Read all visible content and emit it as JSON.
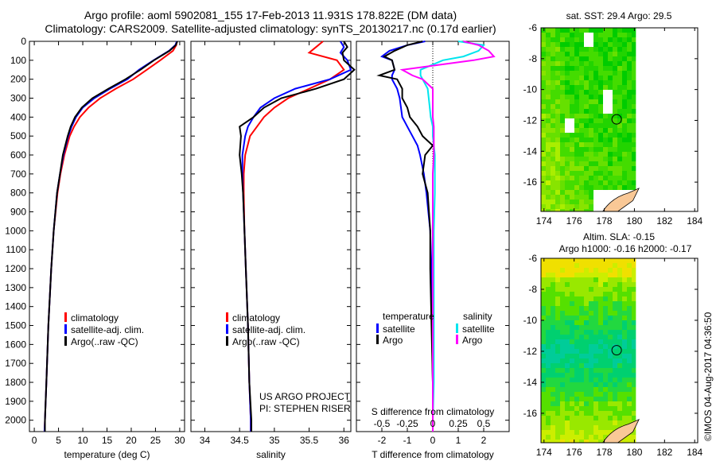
{
  "title_line1": "Argo profile: aoml 5902081_155 17-Feb-2013 11.931S 178.822E (DM data)",
  "title_line2": "Climatology: CARS2009. Satellite-adjusted climatology: synTS_20130217.nc (0.17d earlier)",
  "credit": "©IMOS 04-Aug-2017 04:36:50",
  "project_line1": "US ARGO PROJECT",
  "project_line2": "PI: STEPHEN RISER",
  "colors": {
    "climatology": "#ff0000",
    "satellite": "#0000ff",
    "argo": "#000000",
    "sal_satellite": "#00e5ee",
    "sal_argo": "#ff00ff",
    "land": "#f9c896"
  },
  "chart_data": [
    {
      "type": "line",
      "id": "temperature",
      "xlabel": "temperature (deg C)",
      "ylabel": "",
      "xlim": [
        -1,
        31
      ],
      "ylim": [
        2060,
        0
      ],
      "xticks": [
        0,
        5,
        10,
        15,
        20,
        25,
        30
      ],
      "yticks": [
        0,
        100,
        200,
        300,
        400,
        500,
        600,
        700,
        800,
        900,
        1000,
        1100,
        1200,
        1300,
        1400,
        1500,
        1600,
        1700,
        1800,
        1900,
        2000
      ],
      "legend": [
        "climatology",
        "satellite-adj. clim.",
        "Argo(..raw -QC)"
      ],
      "depth": [
        0,
        20,
        50,
        100,
        150,
        200,
        250,
        300,
        350,
        400,
        450,
        500,
        600,
        700,
        800,
        1000,
        1200,
        1500,
        1800,
        2000,
        2060
      ],
      "series": [
        {
          "name": "climatology",
          "color_key": "climatology",
          "values": [
            29.4,
            29.3,
            28.6,
            26.0,
            23.2,
            20.4,
            16.8,
            13.6,
            11.2,
            9.4,
            8.2,
            7.3,
            6.2,
            5.4,
            4.8,
            4.0,
            3.5,
            2.9,
            2.5,
            2.2,
            2.1
          ]
        },
        {
          "name": "satellite-adj. clim.",
          "color_key": "satellite",
          "values": [
            29.4,
            29.1,
            27.8,
            24.6,
            21.6,
            19.2,
            15.6,
            12.4,
            10.0,
            8.6,
            7.7,
            7.0,
            6.0,
            5.3,
            4.7,
            4.0,
            3.5,
            2.9,
            2.5,
            2.2,
            2.1
          ]
        },
        {
          "name": "Argo(..raw -QC)",
          "color_key": "argo",
          "values": [
            29.5,
            29.2,
            27.9,
            24.7,
            21.9,
            18.8,
            15.3,
            12.0,
            9.8,
            8.4,
            7.5,
            6.9,
            5.9,
            5.3,
            4.7,
            4.0,
            3.5,
            2.9,
            2.5,
            2.2,
            2.2
          ]
        }
      ]
    },
    {
      "type": "line",
      "id": "salinity",
      "xlabel": "salinity",
      "xlim": [
        33.8,
        36.1
      ],
      "ylim": [
        2060,
        0
      ],
      "xticks": [
        34,
        34.5,
        35,
        35.5,
        36
      ],
      "legend": [
        "climatology",
        "satellite-adj. clim.",
        "Argo(..raw -QC)"
      ],
      "depth": [
        0,
        30,
        60,
        100,
        150,
        200,
        250,
        300,
        350,
        400,
        450,
        500,
        600,
        700,
        800,
        1000,
        1200,
        1500,
        1800,
        2000,
        2060
      ],
      "series": [
        {
          "name": "climatology",
          "color_key": "climatology",
          "values": [
            35.7,
            35.6,
            35.5,
            35.9,
            36.0,
            35.8,
            35.5,
            35.2,
            35.0,
            34.85,
            34.75,
            34.65,
            34.58,
            34.56,
            34.56,
            34.57,
            34.59,
            34.62,
            34.64,
            34.66,
            34.66
          ]
        },
        {
          "name": "satellite-adj. clim.",
          "color_key": "satellite",
          "values": [
            35.95,
            36.0,
            35.95,
            36.05,
            36.1,
            35.8,
            35.3,
            35.0,
            34.8,
            34.7,
            34.62,
            34.58,
            34.54,
            34.54,
            34.55,
            34.57,
            34.59,
            34.62,
            34.64,
            34.66,
            34.66
          ]
        },
        {
          "name": "Argo(..raw -QC)",
          "color_key": "argo",
          "values": [
            36.0,
            36.05,
            35.98,
            36.0,
            36.15,
            36.0,
            35.6,
            35.1,
            34.85,
            34.7,
            34.5,
            34.52,
            34.5,
            34.53,
            34.55,
            34.57,
            34.59,
            34.62,
            34.64,
            34.67,
            34.67
          ]
        }
      ]
    },
    {
      "type": "line",
      "id": "differences",
      "xlabel": "T difference from climatology",
      "x2label": "S difference from climatology",
      "xlim": [
        -3,
        3
      ],
      "x2lim": [
        -0.75,
        0.75
      ],
      "ylim": [
        2060,
        0
      ],
      "xticks": [
        -2,
        -1,
        0,
        1,
        2
      ],
      "x2ticks": [
        -0.5,
        -0.25,
        0,
        0.25,
        0.5
      ],
      "x2ticklabels": [
        "-0.5",
        "-0.25",
        "0",
        "0.25",
        "0.5"
      ],
      "legend_temperature_title": "temperature",
      "legend_salinity_title": "salinity",
      "legend": [
        "satellite",
        "Argo",
        "satellite",
        "Argo"
      ],
      "depth": [
        0,
        20,
        50,
        80,
        100,
        150,
        180,
        200,
        250,
        300,
        350,
        400,
        450,
        500,
        550,
        600,
        700,
        800,
        1000,
        1200,
        1500,
        1800,
        2000,
        2060
      ],
      "series": [
        {
          "name": "T satellite",
          "color_key": "satellite",
          "axis": "T",
          "values": [
            -0.3,
            -1.0,
            -1.7,
            -2.0,
            -1.6,
            -1.5,
            -1.6,
            -1.6,
            -1.4,
            -1.3,
            -1.25,
            -1.2,
            -1.0,
            -0.8,
            -0.6,
            -0.5,
            -0.35,
            -0.25,
            -0.1,
            -0.05,
            -0.03,
            0,
            0,
            0
          ]
        },
        {
          "name": "T Argo",
          "color_key": "argo",
          "axis": "T",
          "values": [
            -0.4,
            -1.0,
            -1.5,
            -1.9,
            -1.6,
            -1.5,
            -2.1,
            -1.4,
            -1.2,
            -1.2,
            -1.0,
            -0.9,
            -0.6,
            -0.4,
            0,
            -0.3,
            -0.4,
            -0.2,
            -0.1,
            -0.1,
            -0.05,
            0,
            0,
            0
          ]
        },
        {
          "name": "S satellite",
          "color_key": "sal_satellite",
          "axis": "S",
          "values": [
            0.25,
            0.5,
            0.45,
            0.3,
            0.1,
            -0.12,
            -0.12,
            -0.1,
            -0.05,
            -0.04,
            -0.03,
            -0.02,
            0,
            0,
            0.01,
            0.02,
            0.02,
            0.02,
            0.01,
            0.01,
            0.01,
            0.01,
            0,
            0
          ]
        },
        {
          "name": "S Argo",
          "color_key": "sal_argo",
          "axis": "S",
          "values": [
            0.3,
            0.45,
            0.55,
            0.6,
            0.4,
            -0.3,
            -0.2,
            -0.1,
            0,
            0,
            0,
            0,
            0.01,
            0.01,
            0.01,
            0.01,
            0,
            0,
            0,
            0,
            0,
            0,
            0,
            0
          ]
        }
      ]
    },
    {
      "type": "heatmap",
      "id": "sst_map",
      "title": "sat. SST: 29.4 Argo: 29.5",
      "xlim": [
        173.8,
        184.2
      ],
      "ylim": [
        -17.9,
        -6
      ],
      "xticks": [
        174,
        176,
        178,
        180,
        182,
        184
      ],
      "yticks": [
        -6,
        -8,
        -10,
        -12,
        -14,
        -16
      ],
      "data_lon_max": 180.1,
      "argo_position": [
        178.822,
        -11.931
      ],
      "palette": [
        "#00cc00",
        "#22d400",
        "#44dc00",
        "#66e000",
        "#88e400",
        "#aaee00",
        "#c4f200"
      ]
    },
    {
      "type": "heatmap",
      "id": "sla_map",
      "title_line1": "Altim. SLA: -0.15",
      "title_line2": "Argo h1000: -0.16 h2000: -0.17",
      "xlim": [
        173.8,
        184.2
      ],
      "ylim": [
        -17.9,
        -6
      ],
      "xticks": [
        174,
        176,
        178,
        180,
        182,
        184
      ],
      "yticks": [
        -6,
        -8,
        -10,
        -12,
        -14,
        -16
      ],
      "data_lon_max": 180.1,
      "argo_position": [
        178.822,
        -11.931
      ],
      "palette": [
        "#00cc99",
        "#00d070",
        "#22d840",
        "#55e000",
        "#99e800",
        "#ccee00",
        "#f0e000"
      ]
    }
  ]
}
